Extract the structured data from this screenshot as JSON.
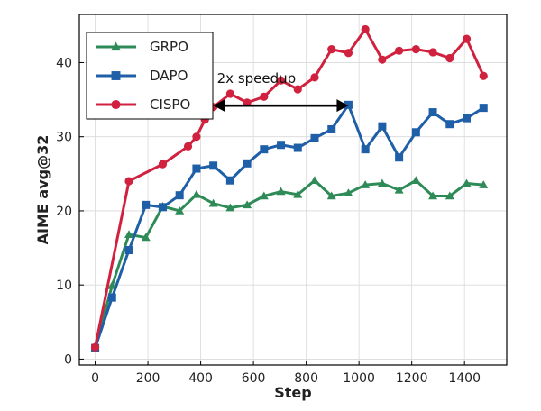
{
  "chart_data": {
    "type": "line",
    "xlabel": "Step",
    "ylabel": "AIME avg@32",
    "xlim": [
      -60,
      1560
    ],
    "ylim": [
      -0.8,
      46.5
    ],
    "xticks": [
      0,
      200,
      400,
      600,
      800,
      1000,
      1200,
      1400
    ],
    "yticks": [
      0,
      10,
      20,
      30,
      40
    ],
    "grid": true,
    "legend_position": "top-left",
    "series": [
      {
        "name": "GRPO",
        "color": "#2e8b57",
        "marker": "triangle",
        "x": [
          0,
          64,
          128,
          192,
          256,
          320,
          384,
          448,
          512,
          576,
          640,
          704,
          768,
          832,
          896,
          960,
          1024,
          1088,
          1152,
          1216,
          1280,
          1344,
          1408,
          1472
        ],
        "y": [
          1.6,
          9.9,
          16.8,
          16.4,
          20.6,
          20.0,
          22.2,
          21.0,
          20.4,
          20.8,
          22.0,
          22.6,
          22.2,
          24.1,
          22.0,
          22.4,
          23.5,
          23.7,
          22.8,
          24.1,
          22.0,
          22.0,
          23.7,
          23.5
        ]
      },
      {
        "name": "DAPO",
        "color": "#1f5fa8",
        "marker": "square",
        "x": [
          0,
          64,
          128,
          192,
          256,
          320,
          384,
          448,
          512,
          576,
          640,
          704,
          768,
          832,
          896,
          960,
          1024,
          1088,
          1152,
          1216,
          1280,
          1344,
          1408,
          1472
        ],
        "y": [
          1.5,
          8.3,
          14.7,
          20.8,
          20.5,
          22.1,
          25.7,
          26.1,
          24.1,
          26.4,
          28.3,
          28.9,
          28.5,
          29.8,
          31.0,
          34.3,
          28.3,
          31.4,
          27.2,
          30.6,
          33.3,
          31.7,
          32.5,
          33.9
        ]
      },
      {
        "name": "CISPO",
        "color": "#d0213f",
        "marker": "circle",
        "x": [
          0,
          128,
          256,
          352,
          384,
          416,
          448,
          512,
          576,
          640,
          704,
          768,
          832,
          896,
          960,
          1024,
          1088,
          1152,
          1216,
          1280,
          1344,
          1408,
          1472
        ],
        "y": [
          1.6,
          24.0,
          26.3,
          28.7,
          30.0,
          32.3,
          34.0,
          35.8,
          34.6,
          35.4,
          37.6,
          36.4,
          38.0,
          41.8,
          41.3,
          44.5,
          40.4,
          41.6,
          41.8,
          41.4,
          40.6,
          43.2,
          38.2
        ]
      }
    ],
    "annotation": {
      "text": "2x speedup",
      "arrow_from": [
        448,
        34.2
      ],
      "arrow_to": [
        960,
        34.2
      ]
    }
  }
}
